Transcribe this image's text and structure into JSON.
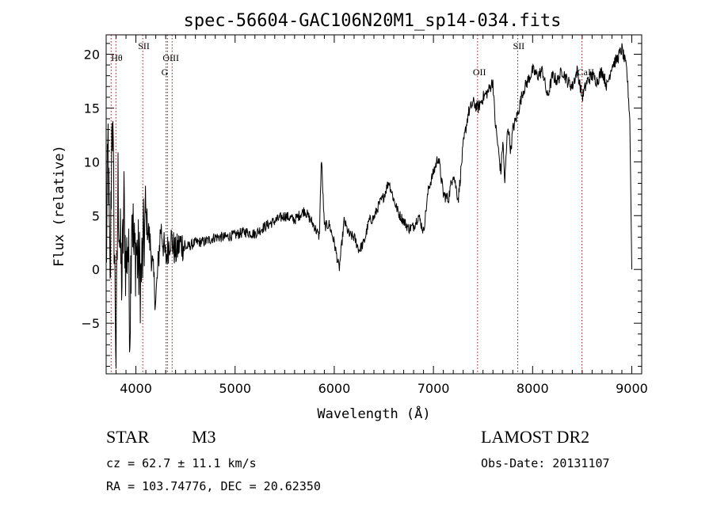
{
  "title": "spec-56604-GAC106N20M1_sp14-034.fits",
  "info": {
    "class": "STAR",
    "subclass": "M3",
    "survey": "LAMOST DR2",
    "cz": "cz = 62.7 ± 11.1 km/s",
    "obs_date": "Obs-Date: 20131107",
    "coords": "RA = 103.74776, DEC =  20.62350"
  },
  "chart_data": {
    "type": "line",
    "title": "spec-56604-GAC106N20M1_sp14-034.fits",
    "xlabel": "Wavelength (Å)",
    "ylabel": "Flux (relative)",
    "xlim": [
      3700,
      9100
    ],
    "ylim": [
      -9.7,
      21.8
    ],
    "xticks": [
      4000,
      5000,
      6000,
      7000,
      8000,
      9000
    ],
    "yticks": [
      -5,
      0,
      5,
      10,
      15,
      20
    ],
    "x_minor_step": 100,
    "y_minor_step": 1,
    "grid": false,
    "line_color": "#000000",
    "marker_color": "#8b1a1a",
    "lines": [
      {
        "label": "Hθ",
        "wavelength": 3798,
        "label_row": 1
      },
      {
        "label": "SII",
        "wavelength": 4069,
        "label_row": 0
      },
      {
        "label": "OIII",
        "wavelength": 4318,
        "label_row": 1
      },
      {
        "label": "G",
        "wavelength": 4304,
        "label_row": 2
      },
      {
        "label": "OII",
        "wavelength": 7445,
        "label_row": 2
      },
      {
        "label": "SII",
        "wavelength": 7850,
        "label_row": 0
      },
      {
        "label": "CaII",
        "wavelength": 8498,
        "label_row": 2
      }
    ],
    "marker_lines_extra": [
      3750,
      4365
    ],
    "spectrum": {
      "x": [
        3700,
        3720,
        3740,
        3760,
        3780,
        3800,
        3820,
        3840,
        3860,
        3880,
        3900,
        3920,
        3940,
        3960,
        3980,
        4000,
        4050,
        4100,
        4150,
        4200,
        4250,
        4300,
        4350,
        4400,
        4450,
        4500,
        4600,
        4700,
        4800,
        4900,
        5000,
        5100,
        5200,
        5300,
        5400,
        5500,
        5600,
        5700,
        5800,
        5850,
        5870,
        5900,
        5950,
        6000,
        6050,
        6100,
        6150,
        6200,
        6250,
        6300,
        6350,
        6400,
        6450,
        6500,
        6550,
        6600,
        6650,
        6700,
        6750,
        6800,
        6850,
        6900,
        6950,
        7000,
        7050,
        7100,
        7150,
        7200,
        7250,
        7300,
        7350,
        7400,
        7450,
        7500,
        7550,
        7600,
        7620,
        7650,
        7680,
        7700,
        7720,
        7750,
        7780,
        7800,
        7850,
        7900,
        7950,
        8000,
        8050,
        8100,
        8150,
        8200,
        8250,
        8300,
        8350,
        8400,
        8450,
        8500,
        8550,
        8600,
        8650,
        8700,
        8750,
        8800,
        8850,
        8900,
        8950,
        8980,
        9000
      ],
      "y": [
        0,
        12,
        -3,
        16,
        4,
        -8,
        8,
        2,
        -1,
        6,
        0,
        3,
        -5,
        7,
        1,
        2,
        -1,
        5,
        2,
        -3,
        4,
        1,
        3,
        1.5,
        2.5,
        2,
        2.5,
        2.6,
        3,
        3,
        3.2,
        3.5,
        3.3,
        4,
        4.5,
        5,
        4.6,
        5.5,
        4,
        3,
        10.5,
        4,
        4.2,
        2.5,
        0,
        4.5,
        3.2,
        3,
        1.8,
        2.5,
        4.5,
        4.8,
        6,
        6.8,
        8.2,
        6.5,
        5.2,
        4.5,
        3.8,
        4,
        5,
        3.5,
        7.5,
        9,
        10.5,
        7,
        6.5,
        9,
        6.5,
        11.5,
        14.5,
        15.5,
        15,
        16,
        16.5,
        17.5,
        14,
        11.5,
        9,
        12,
        8,
        13.5,
        11,
        13,
        14.5,
        16.5,
        17.5,
        18.5,
        18,
        18.5,
        16,
        18,
        17.5,
        18.5,
        17.5,
        17,
        18.5,
        16,
        17.5,
        18,
        17.5,
        18.5,
        17,
        19,
        19.5,
        20.5,
        18.5,
        14,
        0
      ]
    },
    "noise_amplitude_by_region": [
      {
        "from": 3700,
        "to": 4100,
        "amp": 4.5
      },
      {
        "from": 4100,
        "to": 4500,
        "amp": 1.6
      },
      {
        "from": 4500,
        "to": 7000,
        "amp": 0.5
      },
      {
        "from": 7000,
        "to": 9000,
        "amp": 0.6
      }
    ]
  }
}
